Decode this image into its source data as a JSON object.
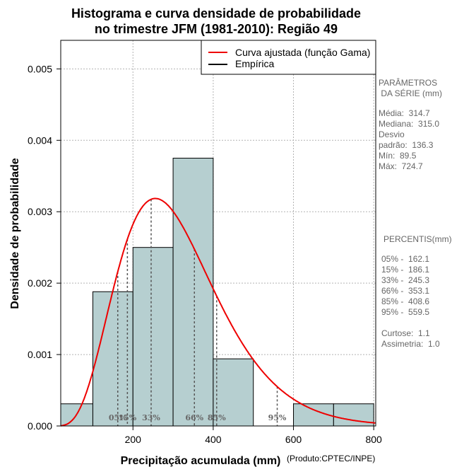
{
  "chart_data": {
    "type": "bar",
    "title_line1": "Histograma e curva densidade de probabilidade",
    "title_line2": "no trimestre JFM (1981-2010): Região 49",
    "xlabel": "Precipitação acumulada (mm)",
    "ylabel": "Densidade de probabilidade",
    "credit": "(Produto:CPTEC/INPE)",
    "xlim": [
      20,
      805
    ],
    "ylim": [
      0,
      0.0054
    ],
    "x_ticks": [
      "200",
      "400",
      "600",
      "800"
    ],
    "y_ticks": [
      "0.000",
      "0.001",
      "0.002",
      "0.003",
      "0.004",
      "0.005"
    ],
    "bins": [
      {
        "start": 0,
        "end": 100,
        "density": 0.00031
      },
      {
        "start": 100,
        "end": 200,
        "density": 0.00188
      },
      {
        "start": 200,
        "end": 300,
        "density": 0.0025
      },
      {
        "start": 300,
        "end": 400,
        "density": 0.00375
      },
      {
        "start": 400,
        "end": 500,
        "density": 0.00094
      },
      {
        "start": 500,
        "end": 600,
        "density": 0.0
      },
      {
        "start": 600,
        "end": 700,
        "density": 0.00031
      },
      {
        "start": 700,
        "end": 800,
        "density": 0.00031
      }
    ],
    "gamma_fit": {
      "mean": 314.7,
      "sd": 136.3
    },
    "percentiles": [
      {
        "label": "05%",
        "value": 162.1
      },
      {
        "label": "15%",
        "value": 186.1
      },
      {
        "label": "33%",
        "value": 245.3
      },
      {
        "label": "66%",
        "value": 353.1
      },
      {
        "label": "85%",
        "value": 408.6
      },
      {
        "label": "95%",
        "value": 559.5
      }
    ],
    "legend": {
      "position": "top-right",
      "fitted": "Curva ajustada (função Gama)",
      "empirical": "Empírica"
    },
    "colors": {
      "bar_fill": "#b6cfd0",
      "curve": "#ee0000",
      "grid": "#b3b3b3"
    }
  },
  "stats": {
    "params_title": "PARÂMETROS\n DA SÉRIE (mm)",
    "params_body": "Média:  314.7\nMediana:  315.0\nDesvio\npadrão:  136.3\nMín:  89.5\nMáx:  724.7",
    "percentis_title": "PERCENTIS(mm)",
    "percentis_body": "05% -  162.1\n15% -  186.1\n33% -  245.3\n66% -  353.1\n85% -  408.6\n95% -  559.5\n\nCurtose:  1.1\nAssimetria:  1.0"
  }
}
